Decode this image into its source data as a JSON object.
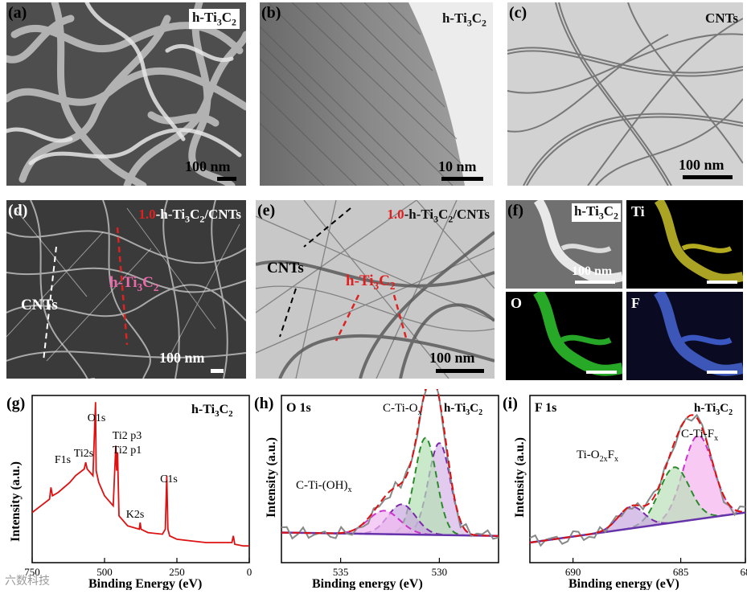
{
  "panels": {
    "a": {
      "label": "(a)",
      "tag": "h-Ti3C2",
      "scale": "100 nm"
    },
    "b": {
      "label": "(b)",
      "tag": "h-Ti3C2",
      "scale": "10 nm"
    },
    "c": {
      "label": "(c)",
      "tag": "CNTs",
      "scale": "100 nm"
    },
    "d": {
      "label": "(d)",
      "tag_prefix": "1.0",
      "tag": "-h-Ti3C2/CNTs",
      "ann_cnts": "CNTs",
      "ann_ti": "h-Ti3C2",
      "scale": "100 nm"
    },
    "e": {
      "label": "(e)",
      "tag_prefix": "1.0",
      "tag": "-h-Ti3C2/CNTs",
      "ann_cnts": "CNTs",
      "ann_ti": "h-Ti3C2",
      "scale": "100 nm"
    },
    "f": {
      "label": "(f)",
      "tag": "h-Ti3C2",
      "scale": "100 nm",
      "ti": "Ti",
      "o": "O",
      "f": "F"
    },
    "g": {
      "label": "(g)",
      "tag": "h-Ti3C2"
    },
    "h": {
      "label": "(h)",
      "tag": "h-Ti3C2"
    },
    "i": {
      "label": "(i)",
      "tag": "h-Ti3C2"
    }
  },
  "chart_data": [
    {
      "type": "line",
      "panel": "g",
      "title": "",
      "xlabel": "Binding Energy (eV)",
      "ylabel": "Intensity (a.u.)",
      "xlim": [
        750,
        0
      ],
      "xticks": [
        "750",
        "500",
        "250",
        "0"
      ],
      "peak_labels": [
        "F1s",
        "Ti2s",
        "O1s",
        "Ti2 p3",
        "Ti2 p1",
        "K2s",
        "C1s"
      ],
      "colors": {
        "line": "#dd1111"
      },
      "series": [
        {
          "x": [
            750,
            720,
            690,
            685,
            680,
            660,
            620,
            600,
            570,
            565,
            560,
            540,
            531,
            529,
            520,
            500,
            470,
            461,
            458,
            455,
            450,
            420,
            380,
            377,
            374,
            350,
            300,
            290,
            285,
            281,
            275,
            250,
            200,
            150,
            100,
            60,
            55,
            50,
            20,
            0
          ],
          "y": [
            0.3,
            0.34,
            0.38,
            0.45,
            0.4,
            0.42,
            0.48,
            0.52,
            0.56,
            0.6,
            0.56,
            0.52,
            0.96,
            0.55,
            0.48,
            0.4,
            0.34,
            0.7,
            0.55,
            0.66,
            0.28,
            0.22,
            0.2,
            0.24,
            0.2,
            0.18,
            0.17,
            0.2,
            0.52,
            0.2,
            0.16,
            0.14,
            0.13,
            0.12,
            0.12,
            0.12,
            0.16,
            0.11,
            0.1,
            0.1
          ]
        }
      ]
    },
    {
      "type": "line",
      "panel": "h",
      "title": "O 1s",
      "xlabel": "Binding energy (eV)",
      "ylabel": "Intensity (a.u.)",
      "xlim": [
        538,
        527
      ],
      "xticks": [
        "535",
        "530"
      ],
      "peak_labels": [
        "C-Ti-Ox",
        "C-Ti-(OH)x"
      ],
      "colors": {
        "data": "#888888",
        "envelope": "#dd1111",
        "green": "#228822",
        "purple": "#7a2aa8",
        "pink": "#cc44cc",
        "baseline": "#6633aa"
      },
      "components": [
        {
          "center": 530.0,
          "amp": 0.55,
          "sigma": 0.55,
          "color": "#7a2aa8",
          "fill": "#d7b5ea"
        },
        {
          "center": 530.7,
          "amp": 0.58,
          "sigma": 0.55,
          "color": "#2a8a2a",
          "fill": "#b4dfb4"
        },
        {
          "center": 531.9,
          "amp": 0.18,
          "sigma": 0.7,
          "color": "#7a2aa8",
          "fill": "#c9a8e0"
        },
        {
          "center": 532.8,
          "amp": 0.14,
          "sigma": 0.8,
          "color": "#cc33cc",
          "fill": "#f1b9f1"
        }
      ]
    },
    {
      "type": "line",
      "panel": "i",
      "title": "F 1s",
      "xlabel": "Binding energy (eV)",
      "ylabel": "Intensity (a.u.)",
      "xlim": [
        692,
        682
      ],
      "xticks": [
        "690",
        "685",
        "68"
      ],
      "peak_labels": [
        "Ti-O2xFx",
        "C-Ti-Fx"
      ],
      "colors": {
        "data": "#888888",
        "envelope": "#dd1111",
        "green": "#228822",
        "purple": "#7a2aa8",
        "pink": "#cc44cc",
        "baseline": "#6633aa"
      },
      "components": [
        {
          "center": 684.2,
          "amp": 0.5,
          "sigma": 0.7,
          "color": "#cc33cc",
          "fill": "#f5b3ee"
        },
        {
          "center": 685.3,
          "amp": 0.33,
          "sigma": 0.7,
          "color": "#2a8a2a",
          "fill": "#b9e0b9"
        },
        {
          "center": 687.3,
          "amp": 0.13,
          "sigma": 0.6,
          "color": "#7a2aa8",
          "fill": "#c9a8e0"
        }
      ]
    }
  ],
  "watermark": "六数科技"
}
